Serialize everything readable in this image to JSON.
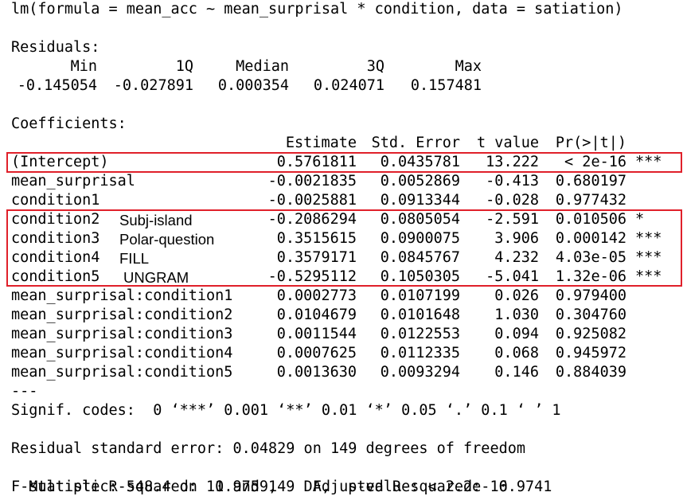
{
  "call": "lm(formula = mean_acc ~ mean_surprisal * condition, data = satiation)",
  "residuals": {
    "title": "Residuals:",
    "headers": [
      "Min",
      "1Q",
      "Median",
      "3Q",
      "Max"
    ],
    "values": [
      "-0.145054",
      "-0.027891",
      "0.000354",
      "0.024071",
      "0.157481"
    ]
  },
  "coefficients": {
    "title": "Coefficients:",
    "headers": [
      "Estimate",
      "Std. Error",
      "t value",
      "Pr(>|t|)"
    ],
    "rows": [
      {
        "name": "(Intercept)",
        "annotation": "",
        "estimate": "0.5761811",
        "std_error": "0.0435781",
        "t_value": "13.222",
        "p_value": "< 2e-16",
        "signif": "***"
      },
      {
        "name": "mean_surprisal",
        "annotation": "",
        "estimate": "-0.0021835",
        "std_error": "0.0052869",
        "t_value": "-0.413",
        "p_value": "0.680197",
        "signif": ""
      },
      {
        "name": "condition1",
        "annotation": "",
        "estimate": "-0.0025881",
        "std_error": "0.0913344",
        "t_value": "-0.028",
        "p_value": "0.977432",
        "signif": ""
      },
      {
        "name": "condition2",
        "annotation": "Subj-island",
        "estimate": "-0.2086294",
        "std_error": "0.0805054",
        "t_value": "-2.591",
        "p_value": "0.010506",
        "signif": "*"
      },
      {
        "name": "condition3",
        "annotation": "Polar-question",
        "estimate": "0.3515615",
        "std_error": "0.0900075",
        "t_value": "3.906",
        "p_value": "0.000142",
        "signif": "***"
      },
      {
        "name": "condition4",
        "annotation": "FILL",
        "estimate": "0.3579171",
        "std_error": "0.0845767",
        "t_value": "4.232",
        "p_value": "4.03e-05",
        "signif": "***"
      },
      {
        "name": "condition5",
        "annotation": "UNGRAM",
        "estimate": "-0.5295112",
        "std_error": "0.1050305",
        "t_value": "-5.041",
        "p_value": "1.32e-06",
        "signif": "***"
      },
      {
        "name": "mean_surprisal:condition1",
        "annotation": "",
        "estimate": "0.0002773",
        "std_error": "0.0107199",
        "t_value": "0.026",
        "p_value": "0.979400",
        "signif": ""
      },
      {
        "name": "mean_surprisal:condition2",
        "annotation": "",
        "estimate": "0.0104679",
        "std_error": "0.0101648",
        "t_value": "1.030",
        "p_value": "0.304760",
        "signif": ""
      },
      {
        "name": "mean_surprisal:condition3",
        "annotation": "",
        "estimate": "0.0011544",
        "std_error": "0.0122553",
        "t_value": "0.094",
        "p_value": "0.925082",
        "signif": ""
      },
      {
        "name": "mean_surprisal:condition4",
        "annotation": "",
        "estimate": "0.0007625",
        "std_error": "0.0112335",
        "t_value": "0.068",
        "p_value": "0.945972",
        "signif": ""
      },
      {
        "name": "mean_surprisal:condition5",
        "annotation": "",
        "estimate": "0.0013630",
        "std_error": "0.0093294",
        "t_value": "0.146",
        "p_value": "0.884039",
        "signif": ""
      }
    ]
  },
  "separator": "---",
  "signif_codes": "Signif. codes:  0 ‘***’ 0.001 ‘**’ 0.01 ‘*’ 0.05 ‘.’ 0.1 ‘ ’ 1",
  "residual_se": "Residual standard error: 0.04829 on 149 degrees of freedom",
  "r_squared": "Multiple R-squared:  0.9759,\tAdjusted R-squared:  0.9741",
  "f_statistic": "F-statistic: 548.4 on 11 and 149 DF,  p-value: < 2.2e-16",
  "highlight_color": "#e0202a"
}
